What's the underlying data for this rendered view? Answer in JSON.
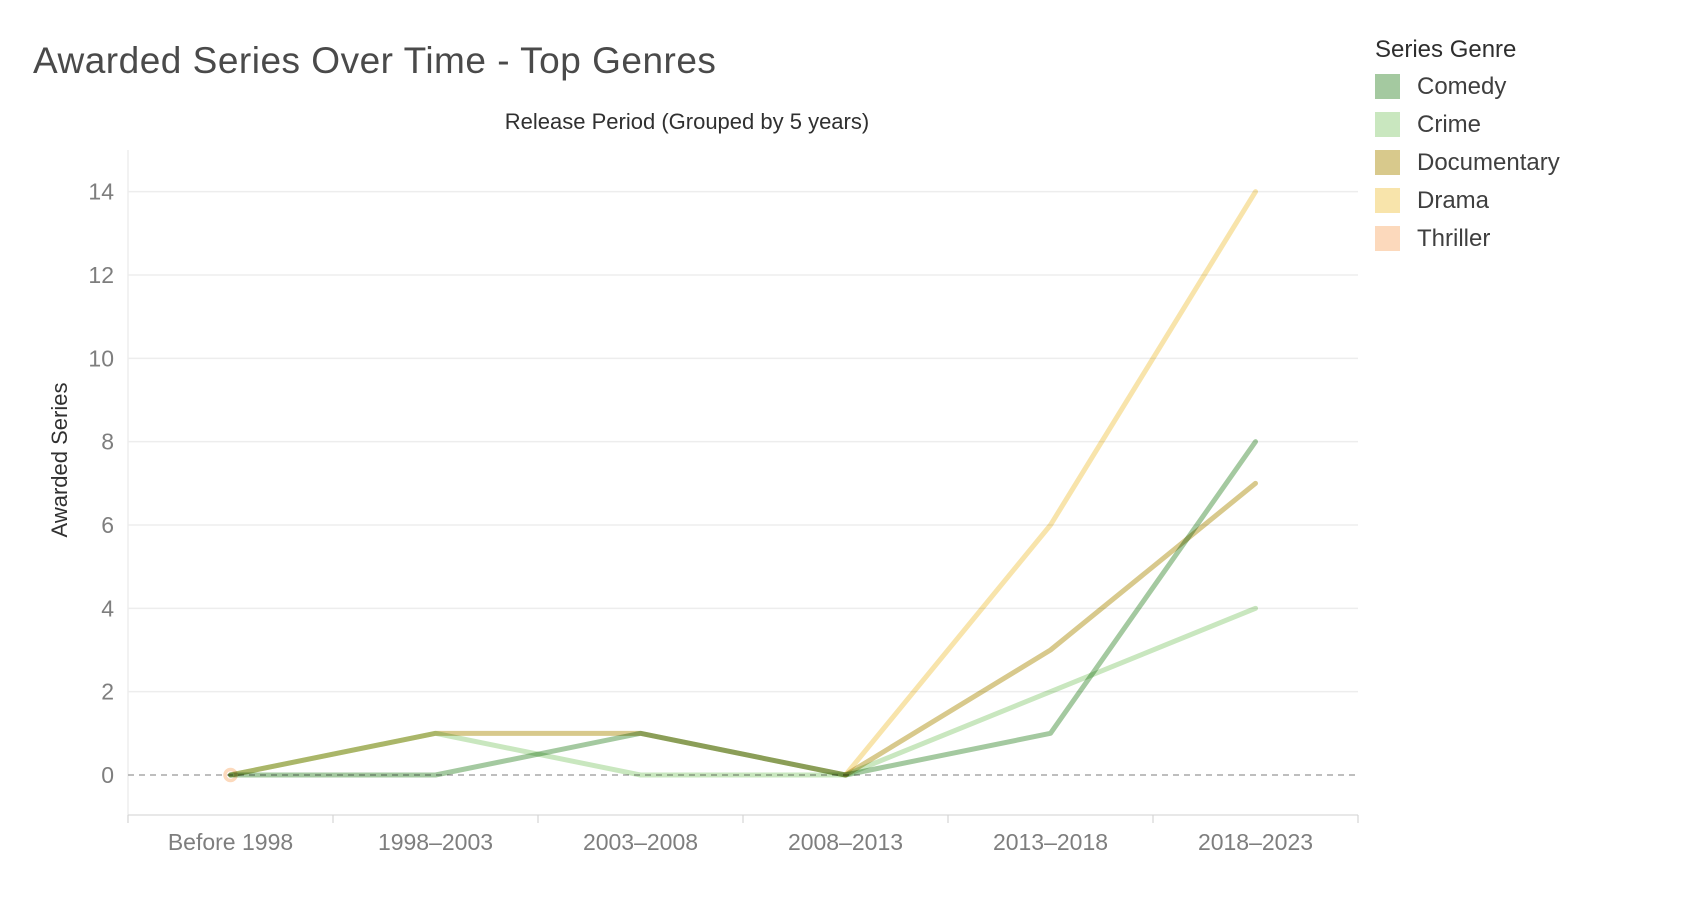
{
  "chart_data": {
    "type": "line",
    "title": "Awarded Series Over Time - Top Genres",
    "xlabel": "Release Period (Grouped by 5 years)",
    "ylabel": "Awarded Series",
    "legend_title": "Series Genre",
    "legend_position": "right",
    "categories": [
      "Before 1998",
      "1998–2003",
      "2003–2008",
      "2008–2013",
      "2013–2018",
      "2018–2023"
    ],
    "series": [
      {
        "name": "Comedy",
        "color": "#a4c9a0",
        "values": [
          0,
          0,
          1,
          0,
          1,
          8
        ]
      },
      {
        "name": "Crime",
        "color": "#c9e7bf",
        "values": [
          0,
          1,
          0,
          0,
          2,
          4
        ]
      },
      {
        "name": "Documentary",
        "color": "#d8c98c",
        "values": [
          0,
          1,
          1,
          0,
          3,
          7
        ]
      },
      {
        "name": "Drama",
        "color": "#f8e4ab",
        "values": [
          null,
          null,
          null,
          0,
          6,
          14
        ]
      },
      {
        "name": "Thriller",
        "color": "#fcd9bc",
        "values": [
          0,
          null,
          null,
          null,
          null,
          null
        ],
        "marker": "circle-outline"
      }
    ],
    "yticks": [
      0,
      2,
      4,
      6,
      8,
      10,
      12,
      14
    ],
    "ylim": [
      0,
      15
    ],
    "grid": "horizontal-only",
    "zero_line_style": "dashed"
  }
}
